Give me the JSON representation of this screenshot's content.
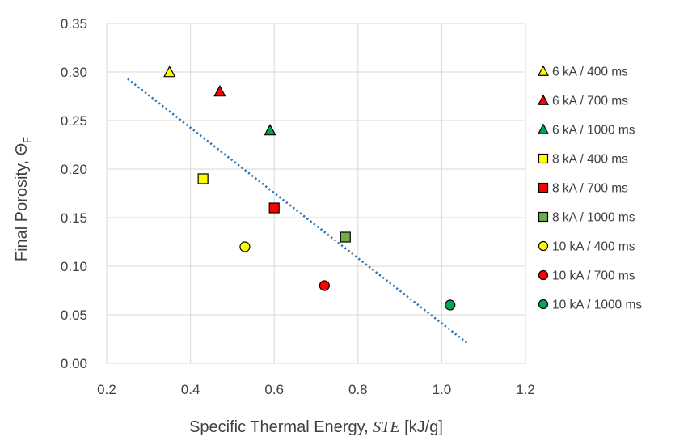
{
  "chart_data": {
    "type": "scatter",
    "xlabel": {
      "prefix": "Specific Thermal Energy, ",
      "symbol": "STE",
      "unit": " [kJ/g]"
    },
    "ylabel": {
      "prefix": "Final Porosity, ",
      "symbol": "Θ",
      "subscript": "F"
    },
    "xlim": [
      0.2,
      1.2
    ],
    "ylim": [
      0.0,
      0.35
    ],
    "xticks": [
      "0.2",
      "0.4",
      "0.6",
      "0.8",
      "1.0",
      "1.2"
    ],
    "yticks": [
      "0.00",
      "0.05",
      "0.10",
      "0.15",
      "0.20",
      "0.25",
      "0.30",
      "0.35"
    ],
    "grid": true,
    "legend_position": "right",
    "series": [
      {
        "name": "6 kA / 400 ms",
        "marker": "triangle",
        "color": "#ffff00",
        "x": 0.35,
        "y": 0.3
      },
      {
        "name": "6 kA / 700 ms",
        "marker": "triangle",
        "color": "#ff0000",
        "x": 0.47,
        "y": 0.28
      },
      {
        "name": "6 kA / 1000 ms",
        "marker": "triangle",
        "color": "#00a651",
        "x": 0.59,
        "y": 0.24
      },
      {
        "name": "8 kA / 400 ms",
        "marker": "square",
        "color": "#ffff00",
        "x": 0.43,
        "y": 0.19
      },
      {
        "name": "8 kA / 700 ms",
        "marker": "square",
        "color": "#ff0000",
        "x": 0.6,
        "y": 0.16
      },
      {
        "name": "8 kA / 1000 ms",
        "marker": "square",
        "color": "#70ad47",
        "x": 0.77,
        "y": 0.13
      },
      {
        "name": "10 kA / 400 ms",
        "marker": "circle",
        "color": "#ffff00",
        "x": 0.53,
        "y": 0.12
      },
      {
        "name": "10 kA / 700 ms",
        "marker": "circle",
        "color": "#ff0000",
        "x": 0.72,
        "y": 0.08
      },
      {
        "name": "10 kA / 1000 ms",
        "marker": "circle",
        "color": "#00a651",
        "x": 1.02,
        "y": 0.06
      }
    ],
    "trendline": {
      "type": "linear",
      "style": "dotted",
      "color": "#2e75b6",
      "x": [
        0.25,
        1.06
      ],
      "y": [
        0.293,
        0.021
      ]
    }
  }
}
